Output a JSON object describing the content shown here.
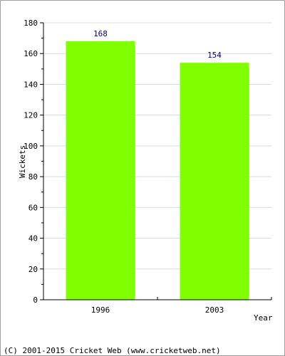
{
  "chart_data": {
    "type": "bar",
    "categories": [
      "1996",
      "2003"
    ],
    "values": [
      168,
      154
    ],
    "data_labels": [
      "168",
      "154"
    ],
    "xlabel": "Year",
    "ylabel": "Wickets",
    "ylim": [
      0,
      180
    ],
    "yticks": [
      0,
      20,
      40,
      60,
      80,
      100,
      120,
      140,
      160,
      180
    ],
    "grid": true,
    "bar_color": "#80ff00",
    "label_color": "#00007a"
  },
  "footer": {
    "copyright": "(C) 2001-2015 Cricket Web (www.cricketweb.net)"
  }
}
